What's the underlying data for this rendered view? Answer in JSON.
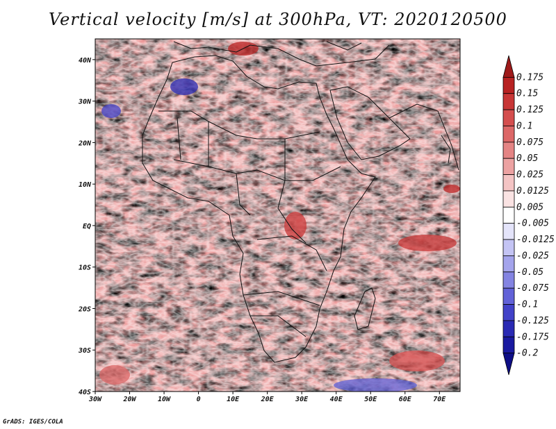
{
  "title": "Vertical velocity [m/s] at 300hPa, VT: 2020120500",
  "credit": "GrADS: IGES/COLA",
  "map": {
    "variable": "Vertical velocity",
    "units": "m/s",
    "level": "300hPa",
    "valid_time": "2020120500",
    "lon_range": [
      -30,
      76
    ],
    "lat_range": [
      -40,
      45
    ],
    "lat_ticks": [
      {
        "value": 40,
        "label": "40N"
      },
      {
        "value": 30,
        "label": "30N"
      },
      {
        "value": 20,
        "label": "20N"
      },
      {
        "value": 10,
        "label": "10N"
      },
      {
        "value": 0,
        "label": "EQ"
      },
      {
        "value": -10,
        "label": "10S"
      },
      {
        "value": -20,
        "label": "20S"
      },
      {
        "value": -30,
        "label": "30S"
      },
      {
        "value": -40,
        "label": "40S"
      }
    ],
    "lon_ticks": [
      {
        "value": -30,
        "label": "30W"
      },
      {
        "value": -20,
        "label": "20W"
      },
      {
        "value": -10,
        "label": "10W"
      },
      {
        "value": 0,
        "label": "0"
      },
      {
        "value": 10,
        "label": "10E"
      },
      {
        "value": 20,
        "label": "20E"
      },
      {
        "value": 30,
        "label": "30E"
      },
      {
        "value": 40,
        "label": "40E"
      },
      {
        "value": 50,
        "label": "50E"
      },
      {
        "value": 60,
        "label": "60E"
      },
      {
        "value": 70,
        "label": "70E"
      }
    ]
  },
  "colorbar": {
    "labels": [
      "0.175",
      "0.15",
      "0.125",
      "0.1",
      "0.075",
      "0.05",
      "0.025",
      "0.0125",
      "0.005",
      "-0.005",
      "-0.0125",
      "-0.025",
      "-0.05",
      "-0.075",
      "-0.1",
      "-0.125",
      "-0.175",
      "-0.2"
    ],
    "colors": [
      "#9e1a1a",
      "#b82222",
      "#c83636",
      "#d44e4e",
      "#dc6767",
      "#e48484",
      "#eca2a2",
      "#f4c4c4",
      "#fae3e3",
      "#ffffff",
      "#e4e4fa",
      "#c4c4f4",
      "#a4a4ec",
      "#8484e2",
      "#6262d8",
      "#4242c8",
      "#2a2ab4",
      "#1a1aa0",
      "#0e0e86"
    ]
  }
}
